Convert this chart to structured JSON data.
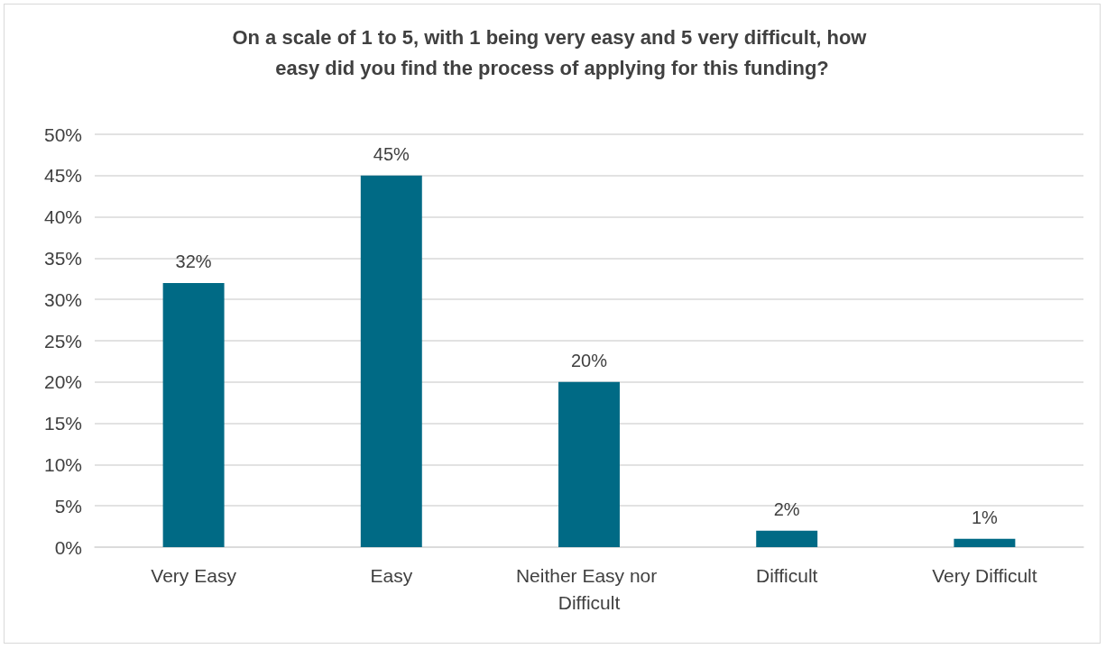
{
  "chart_data": {
    "type": "bar",
    "title": "On a scale of 1 to 5, with 1 being very easy and 5 very difficult, how easy did you find the process of applying for this funding?",
    "categories": [
      "Very Easy",
      "Easy",
      "Neither Easy nor Difficult",
      "Difficult",
      "Very Difficult"
    ],
    "values": [
      32,
      45,
      20,
      2,
      1
    ],
    "color": "#006a85",
    "value_labels": [
      "32%",
      "45%",
      "20%",
      "2%",
      "1%"
    ],
    "ylim": [
      0,
      50
    ],
    "yticks": [
      {
        "value": 0,
        "label": "0%"
      },
      {
        "value": 5,
        "label": "5%"
      },
      {
        "value": 10,
        "label": "10%"
      },
      {
        "value": 15,
        "label": "15%"
      },
      {
        "value": 20,
        "label": "20%"
      },
      {
        "value": 25,
        "label": "25%"
      },
      {
        "value": 30,
        "label": "30%"
      },
      {
        "value": 35,
        "label": "35%"
      },
      {
        "value": 40,
        "label": "40%"
      },
      {
        "value": 45,
        "label": "45%"
      },
      {
        "value": 50,
        "label": "50%"
      }
    ],
    "grid": "y"
  }
}
